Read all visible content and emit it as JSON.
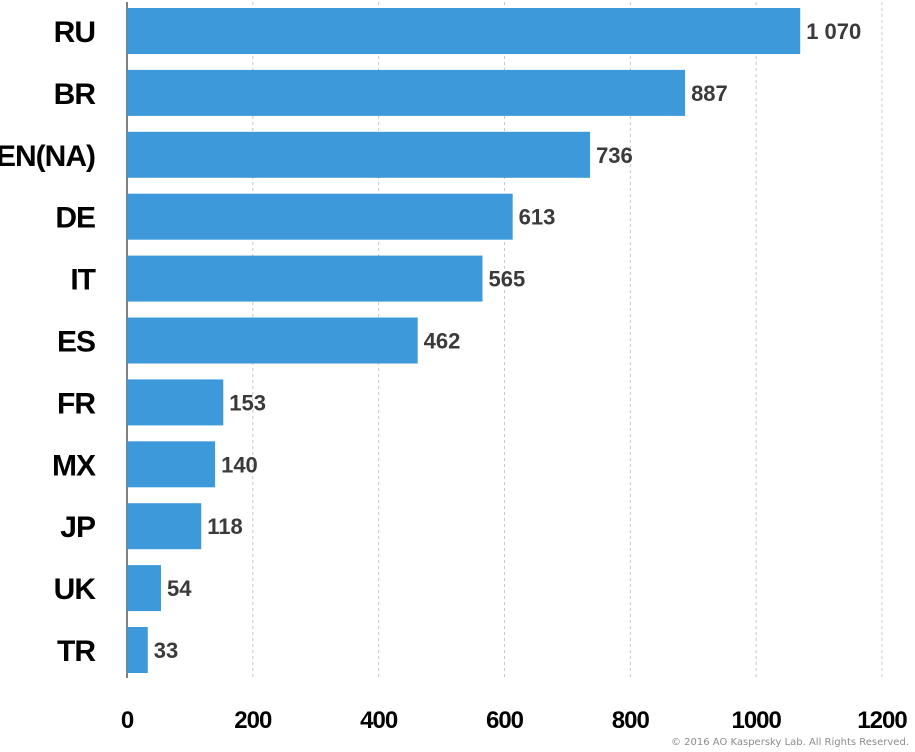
{
  "chart_data": {
    "type": "bar",
    "orientation": "horizontal",
    "categories": [
      "RU",
      "BR",
      "EN(NA)",
      "DE",
      "IT",
      "ES",
      "FR",
      "MX",
      "JP",
      "UK",
      "TR"
    ],
    "values": [
      1070,
      887,
      736,
      613,
      565,
      462,
      153,
      140,
      118,
      54,
      33
    ],
    "value_labels": [
      "1 070",
      "887",
      "736",
      "613",
      "565",
      "462",
      "153",
      "140",
      "118",
      "54",
      "33"
    ],
    "title": "",
    "xlabel": "",
    "ylabel": "",
    "xlim": [
      0,
      1200
    ],
    "x_ticks": [
      "0",
      "200",
      "400",
      "600",
      "800",
      "1000",
      "1200"
    ],
    "grid": true,
    "bar_color": "#3d99d9"
  },
  "footer": {
    "copyright": "© 2016 AO Kaspersky Lab. All Rights Reserved."
  }
}
